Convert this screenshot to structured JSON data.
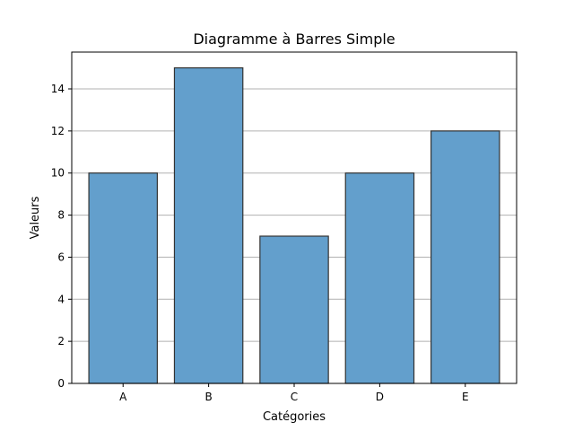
{
  "chart_data": {
    "type": "bar",
    "title": "Diagramme à Barres Simple",
    "xlabel": "Catégories",
    "ylabel": "Valeurs",
    "categories": [
      "A",
      "B",
      "C",
      "D",
      "E"
    ],
    "values": [
      10,
      15,
      7,
      10,
      12
    ],
    "ylim": [
      0,
      15.75
    ],
    "yticks": [
      0,
      2,
      4,
      6,
      8,
      10,
      12,
      14
    ],
    "grid": "y",
    "bar_color": "#639fcc",
    "bar_edge_color": "#333333"
  }
}
